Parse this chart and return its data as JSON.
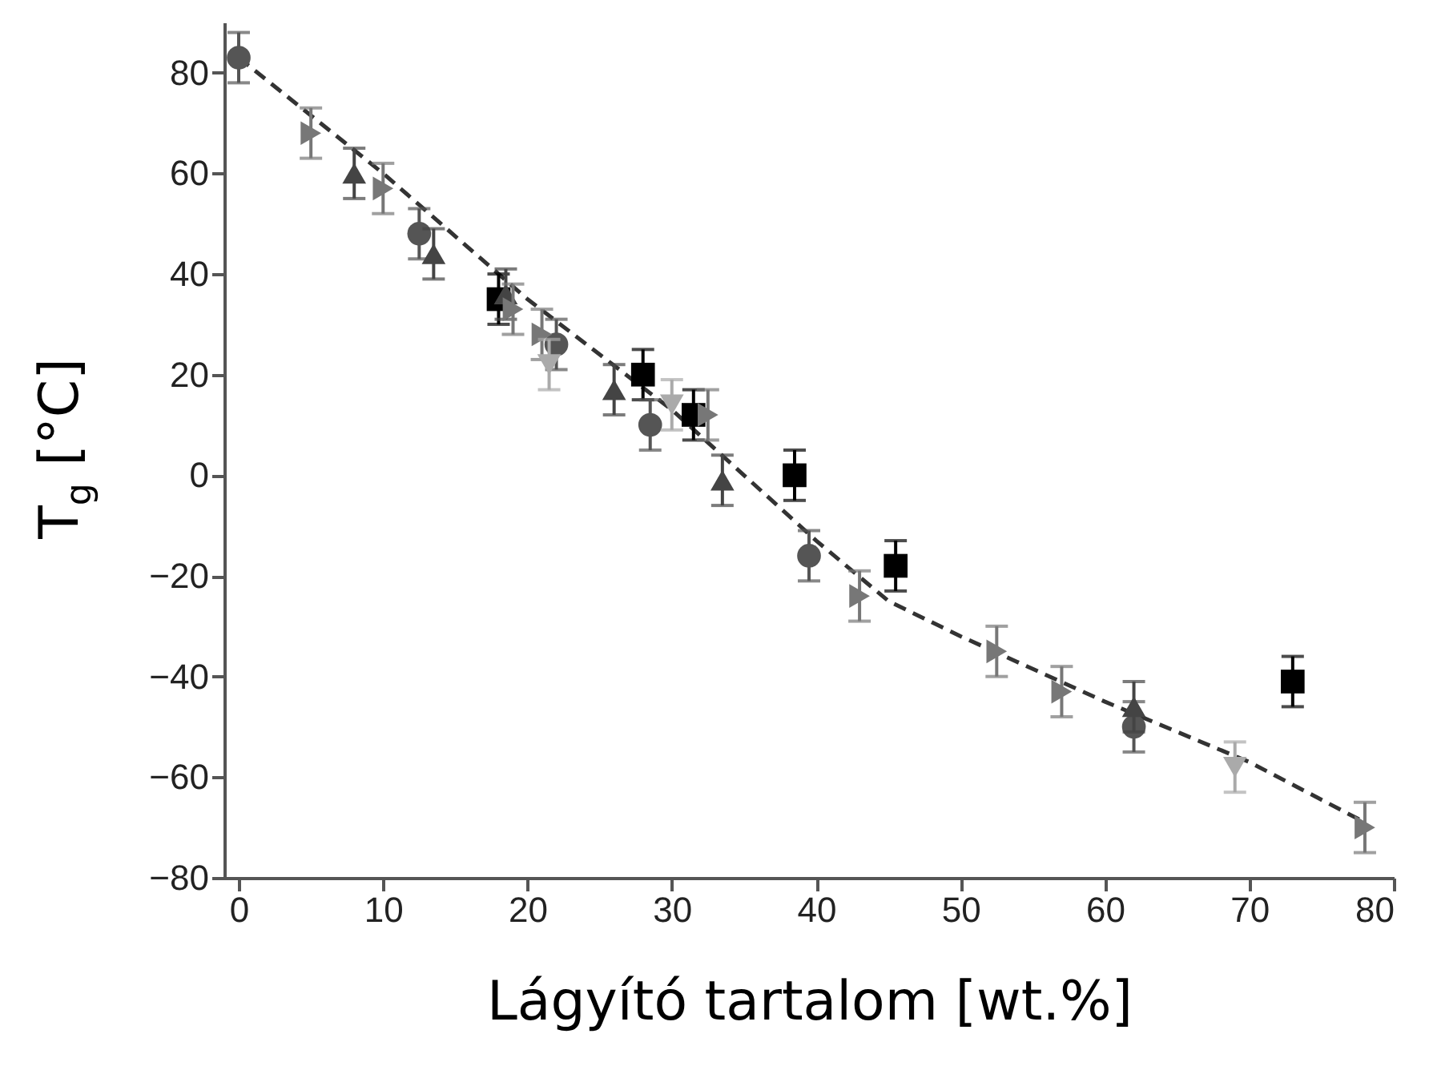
{
  "chart_data": {
    "type": "scatter",
    "xlabel": "Lágyító tartalom [wt.%]",
    "ylabel": "T$_{g}$ [°C]",
    "xlim": [
      -1,
      80
    ],
    "xticks": [
      0,
      10,
      20,
      30,
      40,
      50,
      60,
      70,
      80
    ],
    "ylim": [
      -80,
      90
    ],
    "yticks": [
      -80,
      -60,
      -40,
      -20,
      0,
      20,
      40,
      60,
      80
    ],
    "grid": false,
    "series": [
      {
        "type": "line",
        "color": "#333333",
        "line_style": "dashed",
        "x": [
          0,
          10,
          20,
          30,
          40,
          45,
          50,
          60,
          70,
          78
        ],
        "values": [
          83,
          60,
          35,
          13,
          -13,
          -25,
          -32,
          -45,
          -57,
          -69
        ]
      },
      {
        "color": "#000000",
        "marker": "square",
        "x": [
          18,
          28,
          31.5,
          38.5,
          45.5,
          73
        ],
        "values": [
          35,
          20,
          12,
          0,
          -18,
          -41
        ],
        "errors": [
          5,
          5,
          5,
          5,
          5,
          5
        ]
      },
      {
        "color": "#555555",
        "marker": "circle",
        "x": [
          0,
          12.5,
          22,
          28.5,
          39.5,
          62
        ],
        "values": [
          83,
          48,
          26,
          10,
          -16,
          -50
        ],
        "errors": [
          5,
          5,
          5,
          5,
          5,
          5
        ]
      },
      {
        "color": "#444444",
        "marker": "triangle-up",
        "x": [
          8,
          13.5,
          18.5,
          26,
          33.5,
          62
        ],
        "values": [
          60,
          44,
          36,
          17,
          -1,
          -46
        ],
        "errors": [
          5,
          5,
          5,
          5,
          5,
          5
        ]
      },
      {
        "color": "#777777",
        "marker": "triangle-right",
        "x": [
          5,
          10,
          19,
          21,
          32.5,
          43,
          52.5,
          57,
          78
        ],
        "values": [
          68,
          57,
          33,
          28,
          12,
          -24,
          -35,
          -43,
          -70
        ],
        "errors": [
          5,
          5,
          5,
          5,
          5,
          5,
          5,
          5,
          5
        ]
      },
      {
        "color": "#aaaaaa",
        "marker": "triangle-down",
        "x": [
          21.5,
          30,
          69
        ],
        "values": [
          22,
          14,
          -58
        ],
        "errors": [
          5,
          5,
          5
        ]
      }
    ]
  }
}
